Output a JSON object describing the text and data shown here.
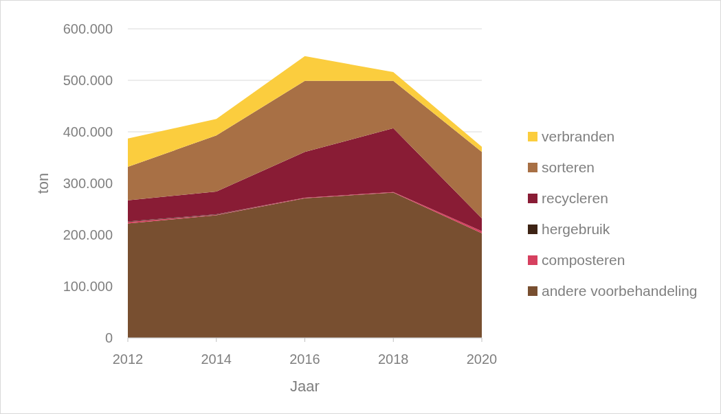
{
  "chart_data": {
    "type": "area",
    "stacked": true,
    "xlabel": "Jaar",
    "ylabel": "ton",
    "x": [
      2012,
      2014,
      2016,
      2018,
      2020
    ],
    "xlim": [
      2012,
      2020
    ],
    "xticks": [
      2012,
      2014,
      2016,
      2018,
      2020
    ],
    "ylim": [
      0,
      600000
    ],
    "yticks": [
      {
        "value": 0,
        "label": "0"
      },
      {
        "value": 100000,
        "label": "100.000"
      },
      {
        "value": 200000,
        "label": "200.000"
      },
      {
        "value": 300000,
        "label": "300.000"
      },
      {
        "value": 400000,
        "label": "400.000"
      },
      {
        "value": 500000,
        "label": "500.000"
      },
      {
        "value": 600000,
        "label": "600.000"
      }
    ],
    "grid": "y",
    "legend": "right",
    "series": [
      {
        "name": "andere voorbehandeling",
        "color": "#784f30",
        "values": [
          222000,
          238000,
          271000,
          282000,
          203000
        ]
      },
      {
        "name": "composteren",
        "color": "#d6405f",
        "values": [
          3000,
          1000,
          1000,
          1000,
          4000
        ]
      },
      {
        "name": "hergebruik",
        "color": "#3d2314",
        "values": [
          1000,
          1000,
          0,
          0,
          0
        ]
      },
      {
        "name": "recycleren",
        "color": "#891c35",
        "values": [
          41000,
          44000,
          89000,
          124000,
          25000
        ]
      },
      {
        "name": "sorteren",
        "color": "#a87045",
        "values": [
          65000,
          109000,
          138000,
          92000,
          129000
        ]
      },
      {
        "name": "verbranden",
        "color": "#fbcd3e",
        "values": [
          55000,
          32000,
          48000,
          17000,
          10000
        ]
      }
    ]
  }
}
